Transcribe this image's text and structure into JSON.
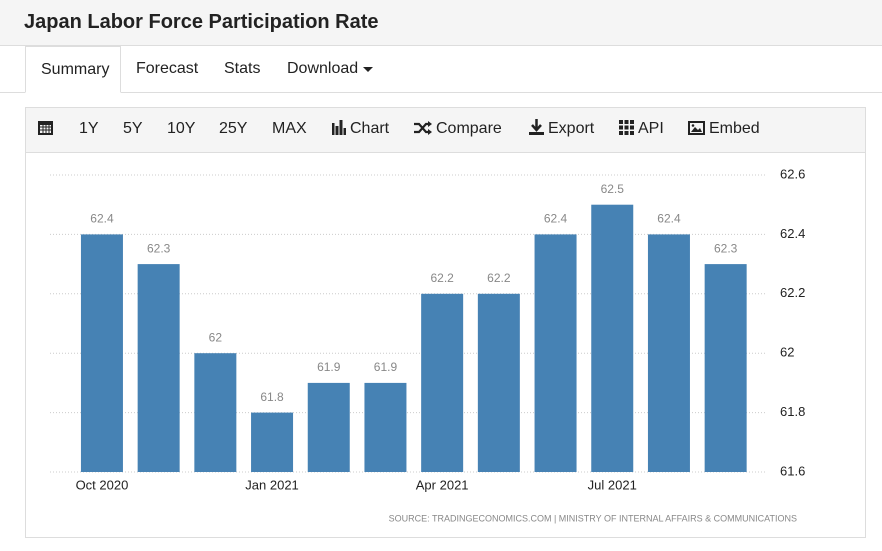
{
  "header": {
    "title": "Japan Labor Force Participation Rate"
  },
  "tabs": [
    "Summary",
    "Forecast",
    "Stats",
    "Download"
  ],
  "toolbar": [
    "1Y",
    "5Y",
    "10Y",
    "25Y",
    "MAX",
    "Chart",
    "Compare",
    "Export",
    "API",
    "Embed"
  ],
  "chart_data": {
    "type": "bar",
    "categories": [
      "Oct 2020",
      null,
      null,
      "Jan 2021",
      null,
      null,
      "Apr 2021",
      null,
      null,
      "Jul 2021",
      null,
      null
    ],
    "values": [
      62.4,
      62.3,
      62,
      61.8,
      61.9,
      61.9,
      62.2,
      62.2,
      62.4,
      62.5,
      62.4,
      62.3
    ],
    "color": "#4682b4",
    "ylim": [
      61.6,
      62.6
    ],
    "yticks": [
      61.6,
      61.8,
      62,
      62.2,
      62.4,
      62.6
    ],
    "grid": true,
    "source": "SOURCE: TRADINGECONOMICS.COM | MINISTRY OF INTERNAL AFFAIRS & COMMUNICATIONS"
  }
}
